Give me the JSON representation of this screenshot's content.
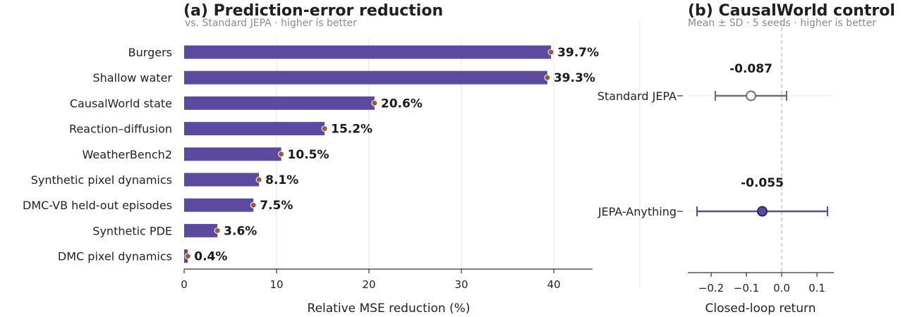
{
  "chart_data": [
    {
      "type": "bar",
      "orientation": "horizontal",
      "title": "(a)  Prediction-error reduction",
      "subtitle": "vs. Standard JEPA  ·  higher is better",
      "xlabel": "Relative MSE reduction (%)",
      "xlim": [
        0,
        44
      ],
      "xticks": [
        0,
        10,
        20,
        30,
        40
      ],
      "grid": "vertical",
      "categories": [
        "Burgers",
        "Shallow water",
        "CausalWorld state",
        "Reaction–diffusion",
        "WeatherBench2",
        "Synthetic pixel dynamics",
        "DMC-VB held-out episodes",
        "Synthetic PDE",
        "DMC pixel dynamics"
      ],
      "values": [
        39.7,
        39.3,
        20.6,
        15.2,
        10.5,
        8.1,
        7.5,
        3.6,
        0.4
      ],
      "data_labels": [
        "39.7%",
        "39.3%",
        "20.6%",
        "15.2%",
        "10.5%",
        "8.1%",
        "7.5%",
        "3.6%",
        "0.4%"
      ],
      "bar_color": "#5b4a9e",
      "marker_color": "#9c5a3a"
    },
    {
      "type": "errorbar",
      "title": "(b)  CausalWorld control",
      "subtitle": "Mean ± SD  ·  5 seeds  ·  higher is better",
      "xlabel": "Closed-loop return",
      "xlim": [
        -0.27,
        0.15
      ],
      "xticks": [
        -0.2,
        -0.1,
        0.0,
        0.1
      ],
      "xtick_labels": [
        "−0.2",
        "−0.1",
        "0.0",
        "0.1"
      ],
      "reference_line": 0.0,
      "series": [
        {
          "name": "Standard JEPA",
          "mean": -0.087,
          "low": -0.188,
          "high": 0.014,
          "label": "-0.087",
          "color": "#6b6b6b",
          "marker": "hollow-circle"
        },
        {
          "name": "JEPA-Anything",
          "mean": -0.055,
          "low": -0.24,
          "high": 0.13,
          "label": "-0.055",
          "color": "#5b4a9e",
          "marker": "filled-circle"
        }
      ]
    }
  ]
}
